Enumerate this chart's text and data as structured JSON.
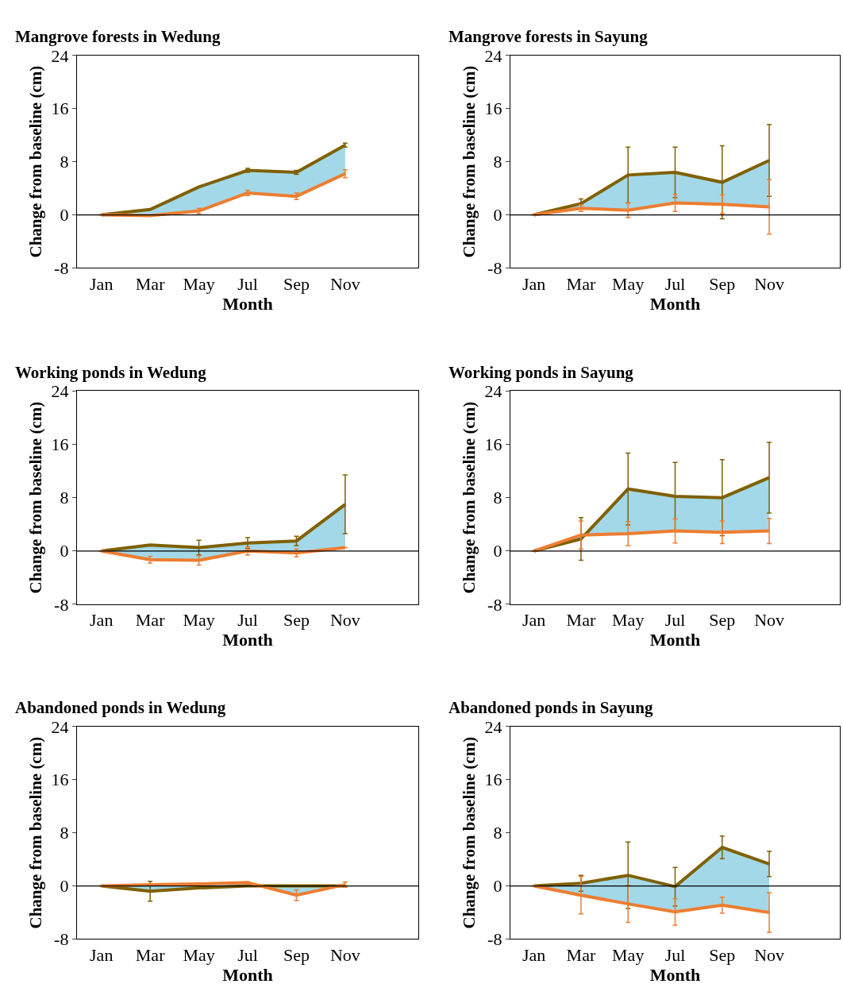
{
  "chart_data": [
    {
      "type": "line",
      "title": "Mangrove forests in Wedung",
      "xlabel": "Month",
      "ylabel": "Change from baseline (cm)",
      "categories": [
        "Jan",
        "Mar",
        "May",
        "Jul",
        "Sep",
        "Nov"
      ],
      "ylim": [
        -8,
        24
      ],
      "yticks": [
        -8,
        0,
        8,
        16,
        24
      ],
      "ref_lines": [
        {
          "axis": "y",
          "value": 0
        }
      ],
      "line_style": "solid",
      "series": [
        {
          "color": "#7f6000",
          "values": [
            0,
            0.8,
            4.2,
            6.7,
            6.4,
            10.5
          ],
          "errors": [
            null,
            null,
            null,
            0.3,
            0.3,
            0.3
          ],
          "lower": [
            0,
            -0.1,
            0.6,
            3.3,
            2.8,
            6.2
          ],
          "upper": [
            0,
            0.8,
            4.2,
            6.7,
            6.4,
            10.5
          ]
        },
        {
          "color": "#ed7d31",
          "values": [
            0,
            -0.1,
            0.6,
            3.3,
            2.8,
            6.2
          ],
          "errors": [
            null,
            null,
            0.4,
            0.4,
            0.5,
            0.6
          ]
        }
      ]
    },
    {
      "type": "line",
      "title": "Mangrove forests in Sayung",
      "xlabel": "Month",
      "ylabel": "Change from baseline (cm)",
      "categories": [
        "Jan",
        "Mar",
        "May",
        "Jul",
        "Sep",
        "Nov"
      ],
      "ylim": [
        -8,
        24
      ],
      "yticks": [
        -8,
        0,
        8,
        16,
        24
      ],
      "ref_lines": [
        {
          "axis": "y",
          "value": 0
        }
      ],
      "line_style": "solid",
      "series": [
        {
          "color": "#7f6000",
          "values": [
            0,
            1.7,
            6.0,
            6.4,
            4.9,
            8.2
          ],
          "errors": [
            null,
            0.7,
            4.2,
            3.8,
            5.5,
            5.4
          ],
          "lower": [
            0,
            1.0,
            0.7,
            1.8,
            1.6,
            1.2
          ],
          "upper": [
            0,
            1.7,
            6.0,
            6.4,
            4.9,
            8.2
          ]
        },
        {
          "color": "#ed7d31",
          "values": [
            0,
            1.0,
            0.7,
            1.8,
            1.6,
            1.2
          ],
          "errors": [
            null,
            0.5,
            1.1,
            1.3,
            1.4,
            4.1
          ]
        }
      ]
    },
    {
      "type": "line",
      "title": "Working ponds in Wedung",
      "xlabel": "Month",
      "ylabel": "Change from baseline (cm)",
      "categories": [
        "Jan",
        "Mar",
        "May",
        "Jul",
        "Sep",
        "Nov"
      ],
      "ylim": [
        -8,
        24
      ],
      "yticks": [
        -8,
        0,
        8,
        16,
        24
      ],
      "ref_lines": [
        {
          "axis": "y",
          "value": 0
        }
      ],
      "line_style": "solid",
      "series": [
        {
          "color": "#7f6000",
          "values": [
            0,
            0.9,
            0.5,
            1.2,
            1.5,
            7.0
          ],
          "errors": [
            null,
            null,
            1.1,
            0.8,
            0.7,
            4.4
          ],
          "lower": [
            0,
            -1.3,
            -1.4,
            0.0,
            -0.3,
            0.5
          ],
          "upper": [
            0,
            0.9,
            0.5,
            1.2,
            1.5,
            7.0
          ]
        },
        {
          "color": "#ed7d31",
          "values": [
            0,
            -1.3,
            -1.4,
            0.0,
            -0.3,
            0.5
          ],
          "errors": [
            null,
            0.5,
            0.7,
            0.6,
            0.6,
            null
          ]
        }
      ]
    },
    {
      "type": "line",
      "title": "Working ponds in Sayung",
      "xlabel": "Month",
      "ylabel": "Change from baseline (cm)",
      "categories": [
        "Jan",
        "Mar",
        "May",
        "Jul",
        "Sep",
        "Nov"
      ],
      "ylim": [
        -8,
        24
      ],
      "yticks": [
        -8,
        0,
        8,
        16,
        24
      ],
      "ref_lines": [
        {
          "axis": "y",
          "value": 0
        }
      ],
      "line_style": "solid",
      "series": [
        {
          "color": "#7f6000",
          "values": [
            0,
            1.8,
            9.3,
            8.2,
            8.0,
            11.0
          ],
          "errors": [
            null,
            3.2,
            5.4,
            5.1,
            5.7,
            5.3
          ],
          "lower": [
            0,
            2.4,
            2.6,
            3.0,
            2.8,
            3.0
          ],
          "upper": [
            0,
            1.8,
            9.3,
            8.2,
            8.0,
            11.0
          ]
        },
        {
          "color": "#ed7d31",
          "values": [
            0,
            2.4,
            2.6,
            3.0,
            2.8,
            3.0
          ],
          "errors": [
            null,
            2.1,
            1.8,
            1.8,
            1.7,
            1.9
          ]
        }
      ]
    },
    {
      "type": "line",
      "title": "Abandoned ponds in Wedung",
      "xlabel": "Month",
      "ylabel": "Change from baseline (cm)",
      "categories": [
        "Jan",
        "Mar",
        "May",
        "Jul",
        "Sep",
        "Nov"
      ],
      "ylim": [
        -8,
        24
      ],
      "yticks": [
        -8,
        0,
        8,
        16,
        24
      ],
      "ref_lines": [
        {
          "axis": "y",
          "value": 0
        }
      ],
      "line_style": "solid",
      "series": [
        {
          "color": "#7f6000",
          "values": [
            0,
            -0.8,
            -0.3,
            0.0,
            0.0,
            0.0
          ],
          "errors": [
            null,
            1.5,
            null,
            null,
            null,
            null
          ],
          "lower": [
            0,
            0.2,
            0.3,
            0.5,
            -1.4,
            0.2
          ],
          "upper": [
            0,
            -0.8,
            -0.3,
            0.0,
            0.0,
            0.0
          ]
        },
        {
          "color": "#ed7d31",
          "values": [
            0,
            0.2,
            0.3,
            0.5,
            -1.4,
            0.2
          ],
          "errors": [
            null,
            null,
            null,
            null,
            0.8,
            0.4
          ]
        }
      ]
    },
    {
      "type": "line",
      "title": "Abandoned ponds in Sayung",
      "xlabel": "Month",
      "ylabel": "Change from baseline (cm)",
      "categories": [
        "Jan",
        "Mar",
        "May",
        "Jul",
        "Sep",
        "Nov"
      ],
      "ylim": [
        -8,
        24
      ],
      "yticks": [
        -8,
        0,
        8,
        16,
        24
      ],
      "ref_lines": [
        {
          "axis": "y",
          "value": 0
        }
      ],
      "line_style": "solid",
      "series": [
        {
          "color": "#7f6000",
          "values": [
            0,
            0.4,
            1.6,
            -0.1,
            5.8,
            3.3
          ],
          "errors": [
            null,
            1.2,
            5.0,
            2.9,
            1.7,
            1.9
          ],
          "lower": [
            0,
            -1.4,
            -2.7,
            -3.9,
            -2.9,
            -4.0
          ],
          "upper": [
            0,
            0.4,
            1.6,
            -0.1,
            5.8,
            3.3
          ]
        },
        {
          "color": "#ed7d31",
          "values": [
            0,
            -1.4,
            -2.7,
            -3.9,
            -2.9,
            -4.0
          ],
          "errors": [
            null,
            2.8,
            2.8,
            2.0,
            1.2,
            3.0
          ]
        }
      ]
    }
  ]
}
